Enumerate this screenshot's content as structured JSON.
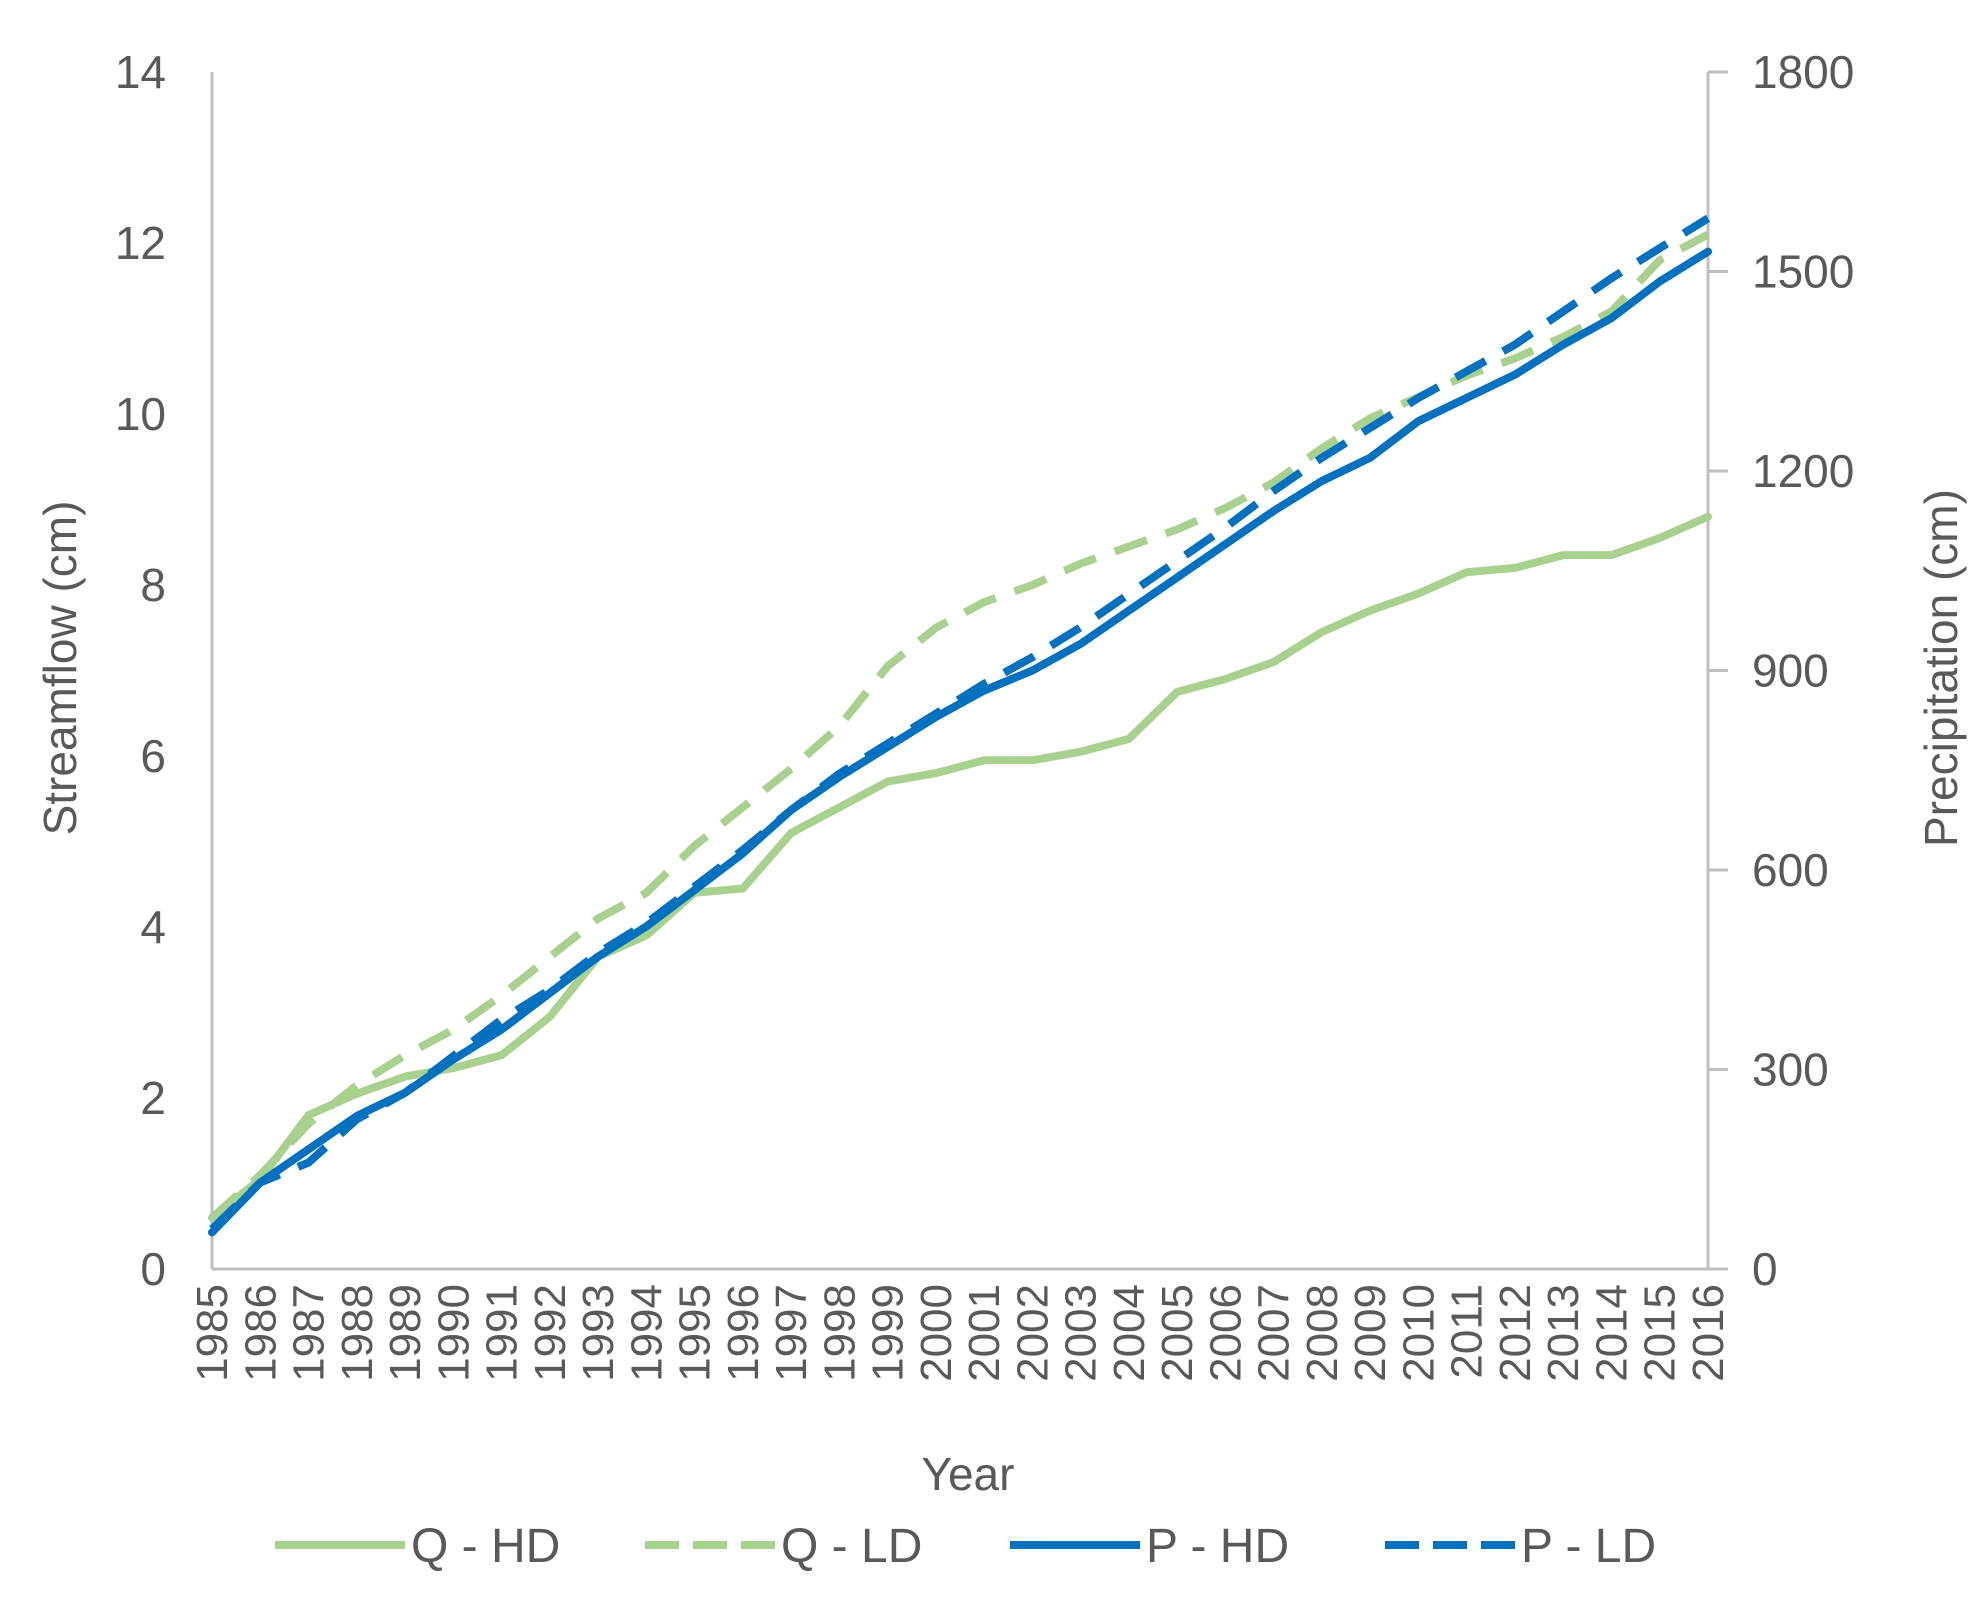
{
  "colors": {
    "q_series": "#a9d18e",
    "p_series": "#0070c0",
    "axis": "#bfbfbf",
    "text": "#595959"
  },
  "chart_data": {
    "type": "line",
    "title": "",
    "xlabel": "Year",
    "ylabel": "Streamflow (cm)",
    "y2label": "Precipitation (cm)",
    "x": [
      "1985",
      "1986",
      "1987",
      "1988",
      "1989",
      "1990",
      "1991",
      "1992",
      "1993",
      "1994",
      "1995",
      "1996",
      "1997",
      "1998",
      "1999",
      "2000",
      "2001",
      "2002",
      "2003",
      "2004",
      "2005",
      "2006",
      "2007",
      "2008",
      "2009",
      "2010",
      "2011",
      "2012",
      "2013",
      "2014",
      "2015",
      "2016"
    ],
    "ylim": [
      0,
      14
    ],
    "yticks": [
      "0",
      "2",
      "4",
      "6",
      "8",
      "10",
      "12",
      "14"
    ],
    "y2lim": [
      0,
      1800
    ],
    "y2ticks": [
      "0",
      "300",
      "600",
      "900",
      "1200",
      "1500",
      "1800"
    ],
    "legend_position": "bottom",
    "series": [
      {
        "name": "Q - HD",
        "axis": "left",
        "style": "solid",
        "color": "#a9d18e",
        "values": [
          0.6,
          1.05,
          1.8,
          2.05,
          2.25,
          2.35,
          2.5,
          2.95,
          3.65,
          3.9,
          4.4,
          4.45,
          5.1,
          5.4,
          5.7,
          5.8,
          5.95,
          5.95,
          6.05,
          6.2,
          6.75,
          6.9,
          7.1,
          7.45,
          7.7,
          7.9,
          8.15,
          8.2,
          8.35,
          8.35,
          8.55,
          8.8
        ]
      },
      {
        "name": "Q - LD",
        "axis": "left",
        "style": "dashed",
        "color": "#a9d18e",
        "values": [
          0.6,
          1.1,
          1.7,
          2.15,
          2.5,
          2.8,
          3.2,
          3.65,
          4.1,
          4.4,
          4.95,
          5.4,
          5.85,
          6.35,
          7.05,
          7.5,
          7.8,
          8.0,
          8.25,
          8.45,
          8.65,
          8.9,
          9.2,
          9.6,
          9.95,
          10.2,
          10.45,
          10.65,
          10.9,
          11.2,
          11.8,
          12.1
        ]
      },
      {
        "name": "P - HD",
        "axis": "right",
        "style": "solid",
        "color": "#0070c0",
        "values": [
          55,
          130,
          180,
          230,
          265,
          315,
          360,
          415,
          470,
          515,
          570,
          625,
          690,
          740,
          785,
          830,
          870,
          900,
          940,
          990,
          1040,
          1090,
          1140,
          1185,
          1220,
          1275,
          1310,
          1345,
          1390,
          1430,
          1485,
          1530
        ]
      },
      {
        "name": "P - LD",
        "axis": "right",
        "style": "dashed",
        "color": "#0070c0",
        "values": [
          60,
          130,
          160,
          225,
          265,
          320,
          375,
          420,
          475,
          520,
          575,
          630,
          690,
          745,
          790,
          835,
          880,
          920,
          965,
          1015,
          1065,
          1115,
          1170,
          1220,
          1265,
          1310,
          1350,
          1390,
          1440,
          1490,
          1535,
          1580
        ]
      }
    ]
  }
}
